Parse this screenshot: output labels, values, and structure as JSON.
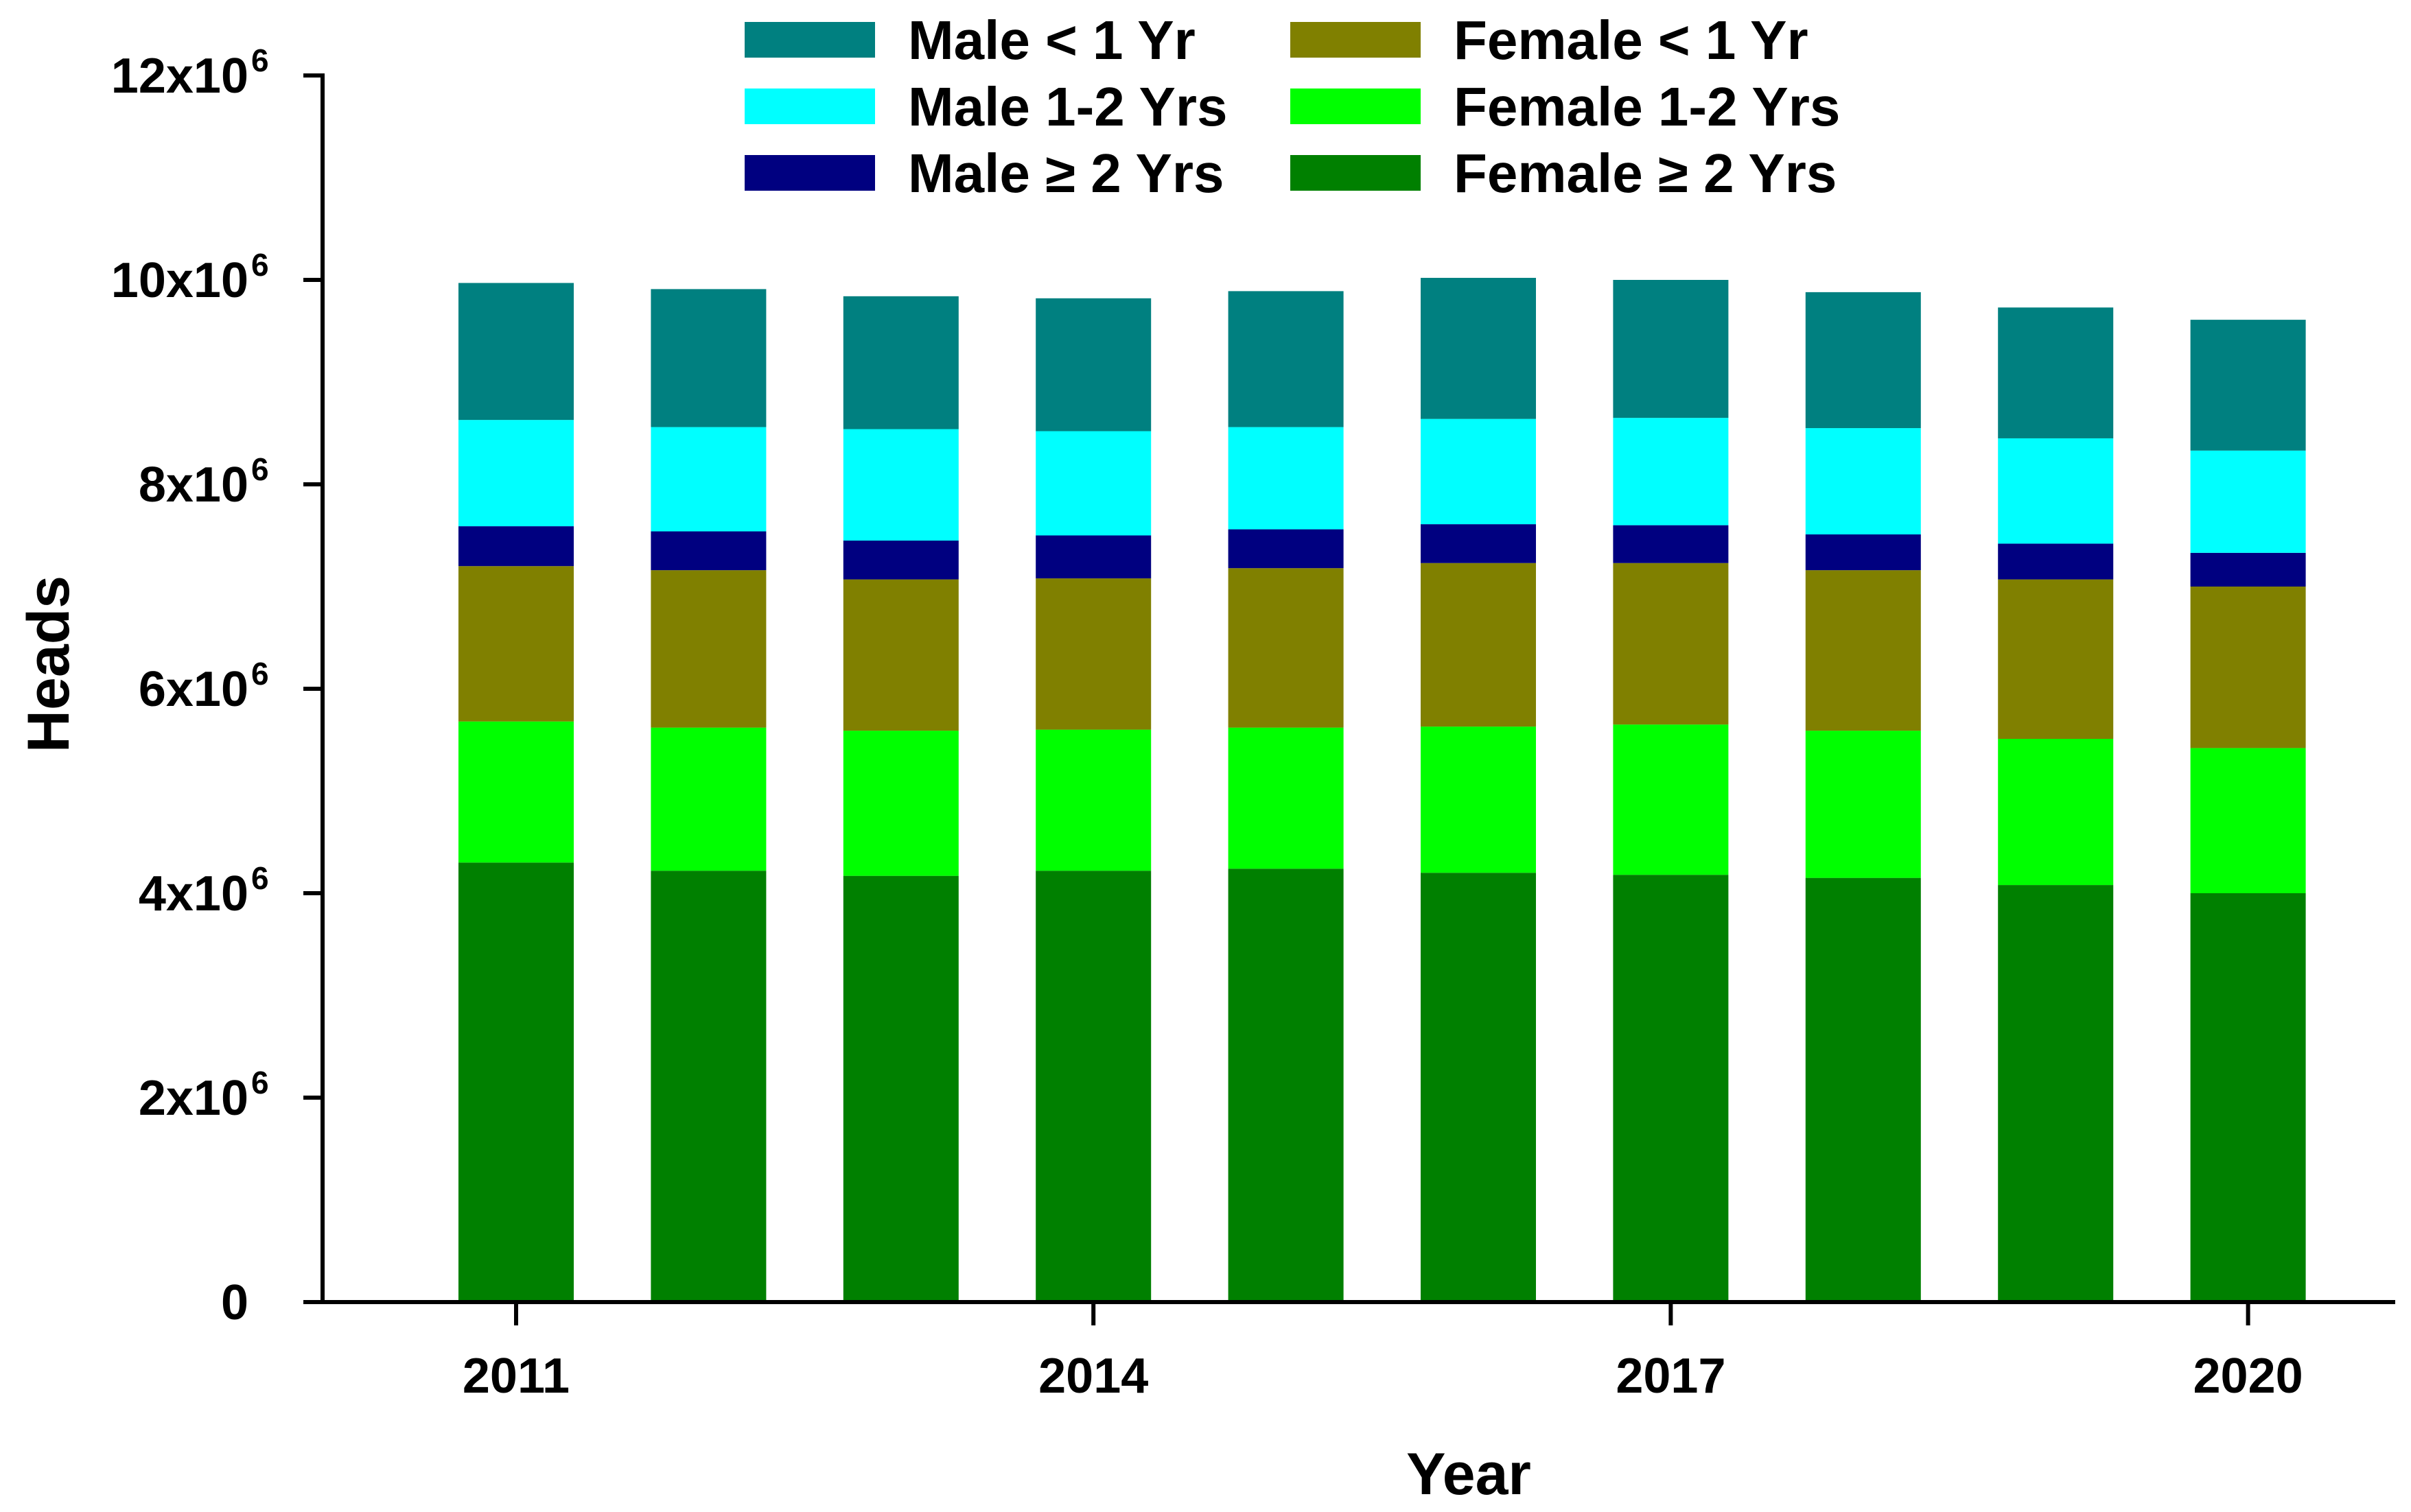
{
  "chart_data": {
    "type": "bar",
    "stacked": true,
    "title": "",
    "xlabel": "Year",
    "ylabel": "Heads",
    "ylim": [
      0,
      12000000
    ],
    "categories": [
      "2011",
      "2012",
      "2013",
      "2014",
      "2015",
      "2016",
      "2017",
      "2018",
      "2019",
      "2020"
    ],
    "x_tick_labels": [
      {
        "index": 0,
        "label": "2011"
      },
      {
        "index": 3,
        "label": "2014"
      },
      {
        "index": 6,
        "label": "2017"
      },
      {
        "index": 9,
        "label": "2020"
      }
    ],
    "y_ticks": [
      {
        "value": 0,
        "base": "0",
        "exp": ""
      },
      {
        "value": 2000000,
        "base": "2x10",
        "exp": "6"
      },
      {
        "value": 4000000,
        "base": "4x10",
        "exp": "6"
      },
      {
        "value": 6000000,
        "base": "6x10",
        "exp": "6"
      },
      {
        "value": 8000000,
        "base": "8x10",
        "exp": "6"
      },
      {
        "value": 10000000,
        "base": "10x10",
        "exp": "6"
      },
      {
        "value": 12000000,
        "base": "12x10",
        "exp": "6"
      }
    ],
    "series": [
      {
        "name": "Female ≥ 2 Yrs",
        "color": "#008000",
        "values": [
          4300000,
          4220000,
          4170000,
          4220000,
          4240000,
          4200000,
          4180000,
          4150000,
          4080000,
          4000000
        ]
      },
      {
        "name": "Female 1-2 Yrs",
        "color": "#00ff00",
        "values": [
          1380000,
          1400000,
          1420000,
          1380000,
          1380000,
          1430000,
          1470000,
          1440000,
          1430000,
          1420000
        ]
      },
      {
        "name": "Female < 1 Yr",
        "color": "#808000",
        "values": [
          1520000,
          1540000,
          1480000,
          1480000,
          1560000,
          1600000,
          1580000,
          1570000,
          1560000,
          1580000
        ]
      },
      {
        "name": "Male ≥ 2 Yrs",
        "color": "#000080",
        "values": [
          390000,
          380000,
          380000,
          420000,
          380000,
          380000,
          370000,
          350000,
          350000,
          330000
        ]
      },
      {
        "name": "Male 1-2 Yrs",
        "color": "#00ffff",
        "values": [
          1040000,
          1020000,
          1090000,
          1020000,
          1000000,
          1030000,
          1050000,
          1040000,
          1030000,
          1000000
        ]
      },
      {
        "name": "Male < 1 Yr",
        "color": "#008080",
        "values": [
          1340000,
          1350000,
          1300000,
          1300000,
          1330000,
          1380000,
          1350000,
          1330000,
          1280000,
          1280000
        ]
      }
    ],
    "legend": {
      "position": "top",
      "entries": [
        {
          "name": "Male < 1 Yr",
          "color": "#008080"
        },
        {
          "name": "Male 1-2 Yrs",
          "color": "#00ffff"
        },
        {
          "name": "Male ≥ 2 Yrs",
          "color": "#000080"
        },
        {
          "name": "Female < 1 Yr",
          "color": "#808000"
        },
        {
          "name": "Female 1-2 Yrs",
          "color": "#00ff00"
        },
        {
          "name": "Female ≥ 2 Yrs",
          "color": "#008000"
        }
      ]
    }
  }
}
